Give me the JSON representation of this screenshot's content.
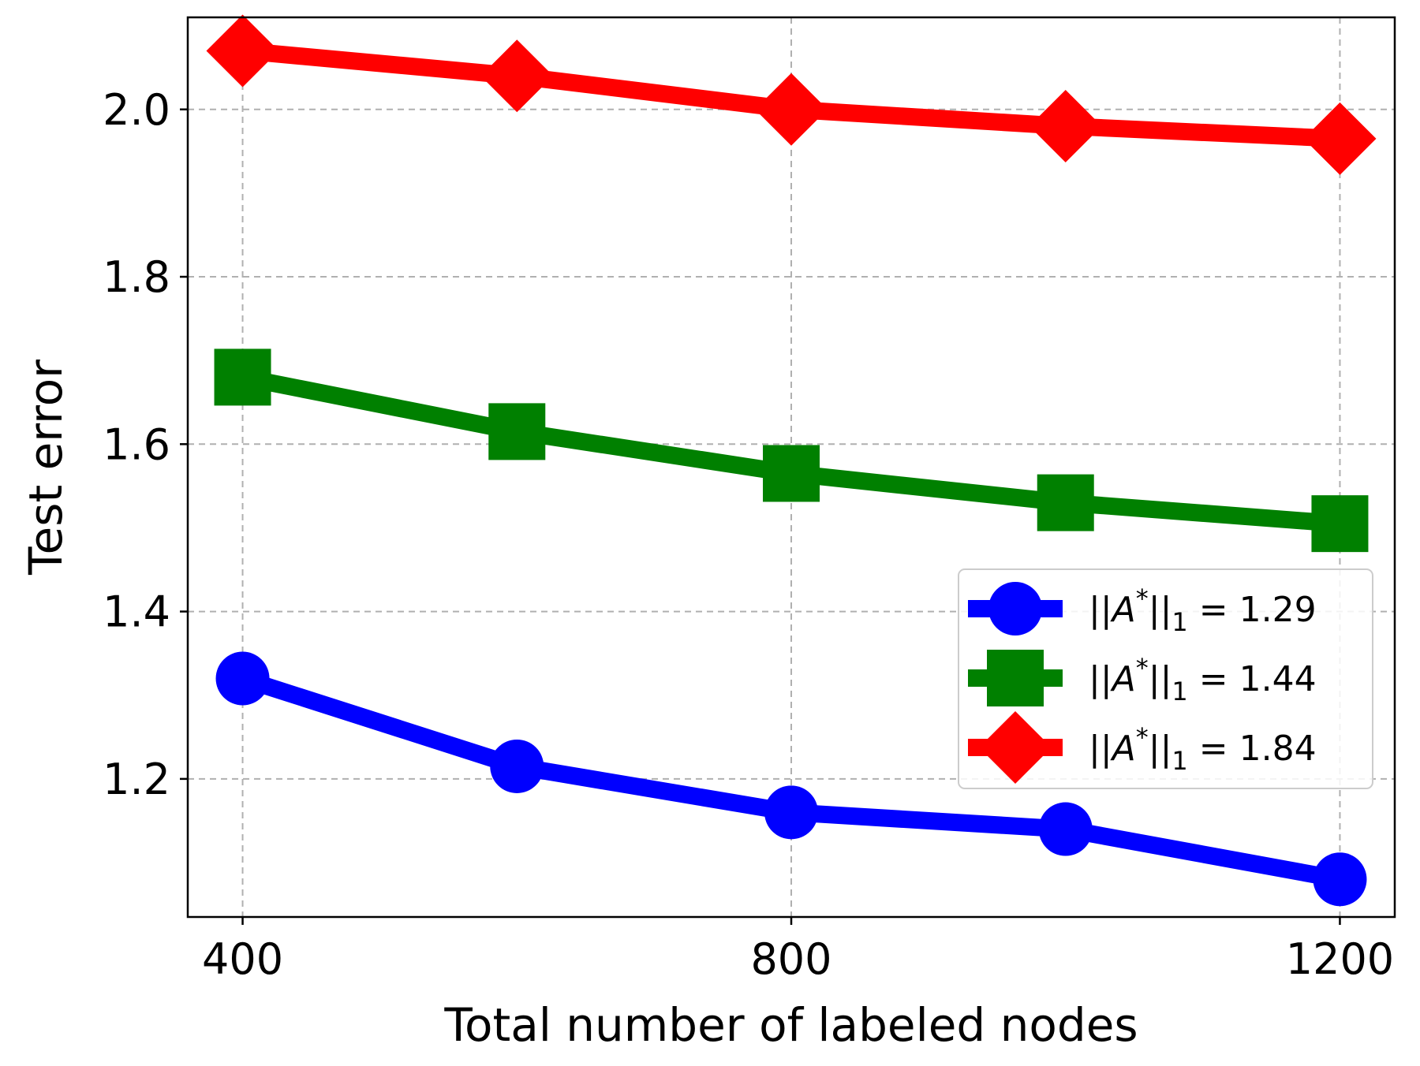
{
  "chart_data": {
    "type": "line",
    "xlabel": "Total number of labeled nodes",
    "ylabel": "Test error",
    "x": [
      400,
      600,
      800,
      1000,
      1200
    ],
    "xticks": [
      400,
      800,
      1200
    ],
    "xtick_labels": [
      "400",
      "800",
      "1200"
    ],
    "yticks": [
      1.2,
      1.4,
      1.6,
      1.8,
      2.0
    ],
    "ytick_labels": [
      "1.2",
      "1.4",
      "1.6",
      "1.8",
      "2.0"
    ],
    "xlim": [
      360,
      1240
    ],
    "ylim": [
      1.035,
      2.11
    ],
    "grid": true,
    "legend_position": "center-right",
    "series": [
      {
        "name": "||A*||₁ = 1.29",
        "label_parts": {
          "pre": "||",
          "sym": "A",
          "sup": "*",
          "mid": "||",
          "sub": "1",
          "post": " = 1.29"
        },
        "color": "#0000ff",
        "marker": "circle",
        "values": [
          1.32,
          1.215,
          1.16,
          1.14,
          1.08
        ]
      },
      {
        "name": "||A*||₁ = 1.44",
        "label_parts": {
          "pre": "||",
          "sym": "A",
          "sup": "*",
          "mid": "||",
          "sub": "1",
          "post": " = 1.44"
        },
        "color": "#008000",
        "marker": "square",
        "values": [
          1.68,
          1.615,
          1.565,
          1.53,
          1.505
        ]
      },
      {
        "name": "||A*||₁ = 1.84",
        "label_parts": {
          "pre": "||",
          "sym": "A",
          "sup": "*",
          "mid": "||",
          "sub": "1",
          "post": " = 1.84"
        },
        "color": "#ff0000",
        "marker": "diamond",
        "values": [
          2.07,
          2.04,
          2.0,
          1.98,
          1.965
        ]
      }
    ]
  }
}
